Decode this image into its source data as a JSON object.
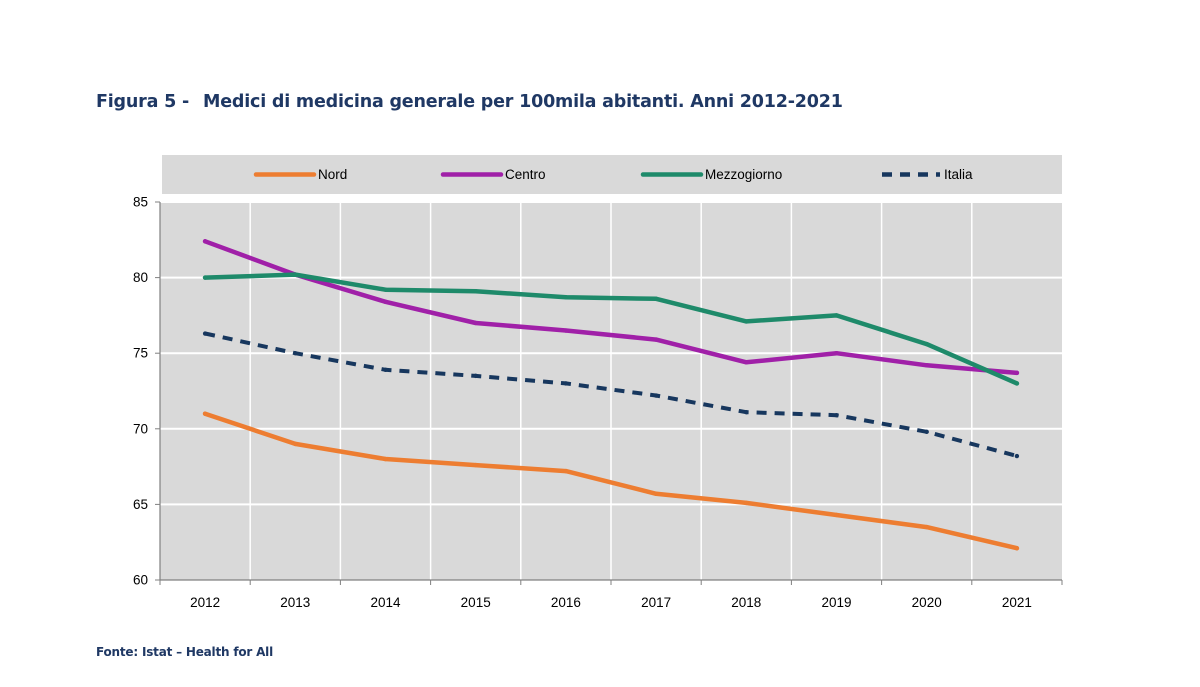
{
  "figure": {
    "label": "Figura 5 -",
    "title": "Medici di medicina generale per 100mila abitanti. Anni 2012-2021"
  },
  "source": "Fonte: Istat – Health for All",
  "chart_data": {
    "type": "line",
    "title": "Medici di medicina generale per 100mila abitanti. Anni 2012-2021",
    "xlabel": "",
    "ylabel": "",
    "categories": [
      "2012",
      "2013",
      "2014",
      "2015",
      "2016",
      "2017",
      "2018",
      "2019",
      "2020",
      "2021"
    ],
    "ylim": [
      60,
      85
    ],
    "yticks": [
      60,
      65,
      70,
      75,
      80,
      85
    ],
    "grid": true,
    "legend_position": "top",
    "series": [
      {
        "name": "Nord",
        "color": "#ed7d31",
        "dashed": false,
        "values": [
          71.0,
          69.0,
          68.0,
          67.6,
          67.2,
          65.7,
          65.1,
          64.3,
          63.5,
          62.1
        ]
      },
      {
        "name": "Centro",
        "color": "#a020a8",
        "dashed": false,
        "values": [
          82.4,
          80.2,
          78.4,
          77.0,
          76.5,
          75.9,
          74.4,
          75.0,
          74.2,
          73.7
        ]
      },
      {
        "name": "Mezzogiorno",
        "color": "#1e8a6a",
        "dashed": false,
        "values": [
          80.0,
          80.2,
          79.2,
          79.1,
          78.7,
          78.6,
          77.1,
          77.5,
          75.6,
          73.0
        ]
      },
      {
        "name": "Italia",
        "color": "#17375e",
        "dashed": true,
        "values": [
          76.3,
          75.0,
          73.9,
          73.5,
          73.0,
          72.2,
          71.1,
          70.9,
          69.8,
          68.2
        ]
      }
    ]
  }
}
